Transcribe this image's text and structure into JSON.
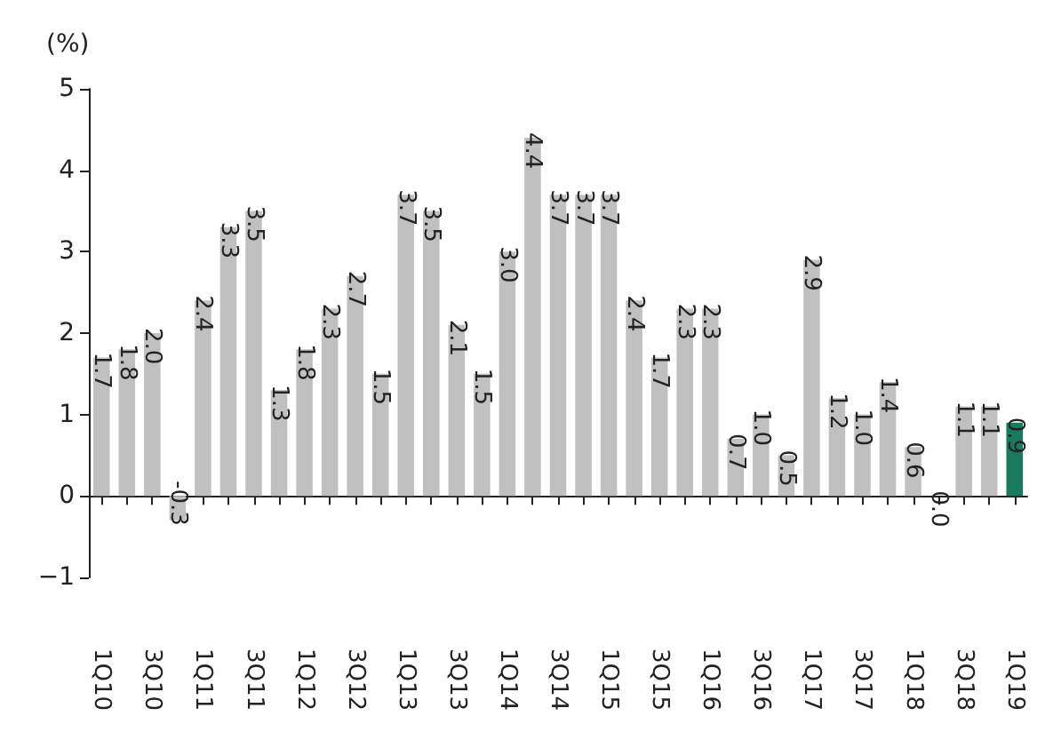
{
  "chart_data": {
    "type": "bar",
    "ylabel": "(%)",
    "categories": [
      "1Q10",
      null,
      "3Q10",
      null,
      "1Q11",
      null,
      "3Q11",
      null,
      "1Q12",
      null,
      "3Q12",
      null,
      "1Q13",
      null,
      "3Q13",
      null,
      "1Q14",
      null,
      "3Q14",
      null,
      "1Q15",
      null,
      "3Q15",
      null,
      "1Q16",
      null,
      "3Q16",
      null,
      "1Q17",
      null,
      "3Q17",
      null,
      "1Q18",
      null,
      "3Q18",
      null,
      "1Q19"
    ],
    "values": [
      1.7,
      1.8,
      2.0,
      -0.3,
      2.4,
      3.3,
      3.5,
      1.3,
      1.8,
      2.3,
      2.7,
      1.5,
      3.7,
      3.5,
      2.1,
      1.5,
      3.0,
      4.4,
      3.7,
      3.7,
      3.7,
      2.4,
      1.7,
      2.3,
      2.3,
      0.7,
      1.0,
      0.5,
      2.9,
      1.2,
      1.0,
      1.4,
      0.6,
      0.0,
      1.1,
      1.1,
      0.9
    ],
    "value_labels": [
      "1.7",
      "1.8",
      "2.0",
      "-0.3",
      "2.4",
      "3.3",
      "3.5",
      "1.3",
      "1.8",
      "2.3",
      "2.7",
      "1.5",
      "3.7",
      "3.5",
      "2.1",
      "1.5",
      "3.0",
      "4.4",
      "3.7",
      "3.7",
      "3.7",
      "2.4",
      "1.7",
      "2.3",
      "2.3",
      "0.7",
      "1.0",
      "0.5",
      "2.9",
      "1.2",
      "1.0",
      "1.4",
      "0.6",
      "0.0",
      "1.1",
      "1.1",
      "0.9"
    ],
    "colors": [
      "#c0c0c0",
      "#c0c0c0",
      "#c0c0c0",
      "#c0c0c0",
      "#c0c0c0",
      "#c0c0c0",
      "#c0c0c0",
      "#c0c0c0",
      "#c0c0c0",
      "#c0c0c0",
      "#c0c0c0",
      "#c0c0c0",
      "#c0c0c0",
      "#c0c0c0",
      "#c0c0c0",
      "#c0c0c0",
      "#c0c0c0",
      "#c0c0c0",
      "#c0c0c0",
      "#c0c0c0",
      "#c0c0c0",
      "#c0c0c0",
      "#c0c0c0",
      "#c0c0c0",
      "#c0c0c0",
      "#c0c0c0",
      "#c0c0c0",
      "#c0c0c0",
      "#c0c0c0",
      "#c0c0c0",
      "#c0c0c0",
      "#c0c0c0",
      "#c0c0c0",
      "#c0c0c0",
      "#c0c0c0",
      "#c0c0c0",
      "#1a7a5e"
    ],
    "ylim": [
      -1,
      5
    ],
    "yticks": [
      -1,
      0,
      1,
      2,
      3,
      4,
      5
    ]
  }
}
